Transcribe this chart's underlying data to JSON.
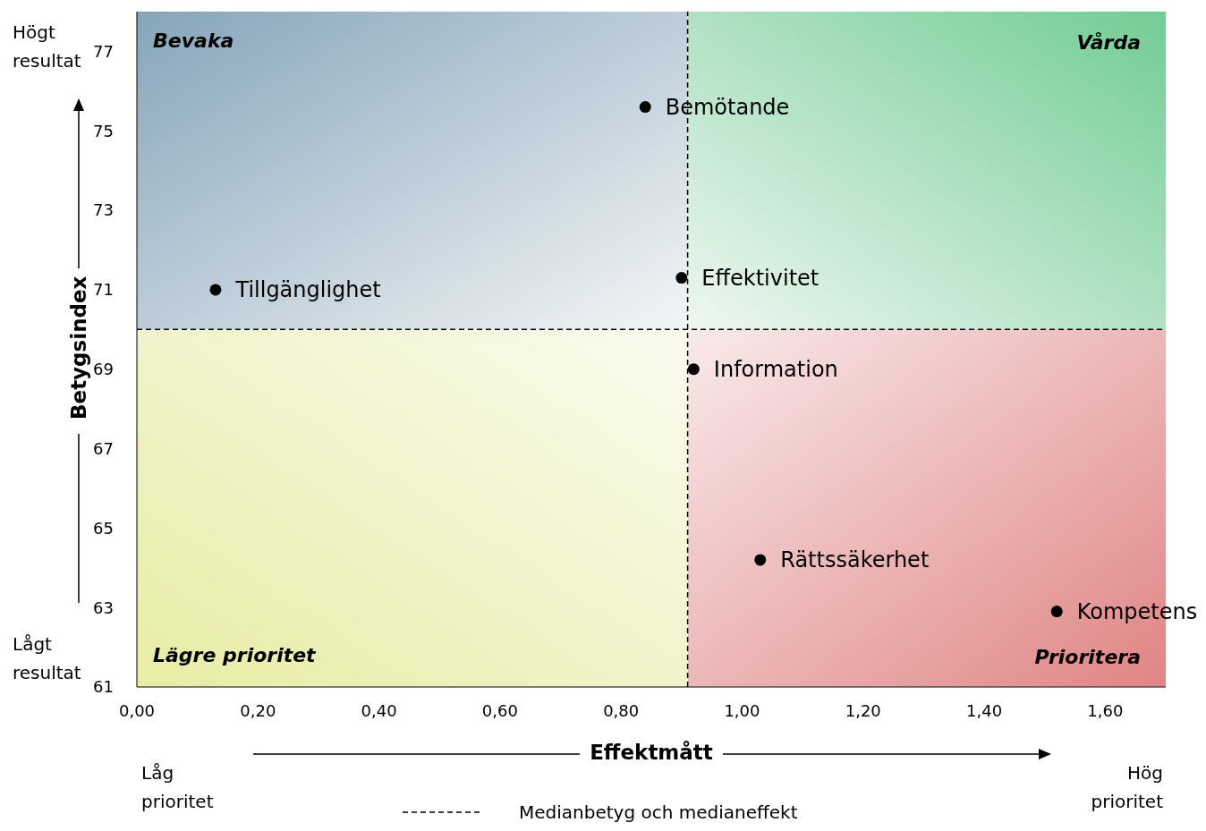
{
  "chart_data": {
    "type": "scatter",
    "xlabel": "Effektmått",
    "ylabel": "Betygsindex",
    "marker": "circle",
    "xlim": [
      0,
      1.7
    ],
    "ylim": [
      61,
      78
    ],
    "xticks": [
      {
        "value": 0,
        "label": "0,00"
      },
      {
        "value": 0.2,
        "label": "0,20"
      },
      {
        "value": 0.4,
        "label": "0,40"
      },
      {
        "value": 0.6,
        "label": "0,60"
      },
      {
        "value": 0.8,
        "label": "0,80"
      },
      {
        "value": 1.0,
        "label": "1,00"
      },
      {
        "value": 1.2,
        "label": "1,20"
      },
      {
        "value": 1.4,
        "label": "1,40"
      },
      {
        "value": 1.6,
        "label": "1,60"
      }
    ],
    "yticks": [
      61,
      63,
      65,
      67,
      69,
      71,
      73,
      75,
      77
    ],
    "series": [
      {
        "name": "Bemötande",
        "color": "#000000",
        "x": [
          0.84
        ],
        "values": [
          75.6
        ]
      },
      {
        "name": "Tillgänglighet",
        "color": "#000000",
        "x": [
          0.13
        ],
        "values": [
          71.0
        ]
      },
      {
        "name": "Effektivitet",
        "color": "#000000",
        "x": [
          0.9
        ],
        "values": [
          71.3
        ]
      },
      {
        "name": "Information",
        "color": "#000000",
        "x": [
          0.92
        ],
        "values": [
          69.0
        ]
      },
      {
        "name": "Rättssäkerhet",
        "color": "#000000",
        "x": [
          1.03
        ],
        "values": [
          64.2
        ]
      },
      {
        "name": "Kompetens",
        "color": "#000000",
        "x": [
          1.52
        ],
        "values": [
          62.9
        ]
      }
    ],
    "ref_lines": [
      {
        "axis": "x",
        "value": 0.91,
        "line_style": "dashed",
        "color": "#000000"
      },
      {
        "axis": "y",
        "value": 70,
        "line_style": "dashed",
        "color": "#000000",
        "label": "Medianbetyg och medianeffekt"
      }
    ],
    "annotations": [
      "Bevaka",
      "Vårda",
      "Lägre prioritet",
      "Prioritera",
      "Högt resultat",
      "Lågt resultat",
      "Låg prioritet",
      "Hög prioritet"
    ]
  }
}
